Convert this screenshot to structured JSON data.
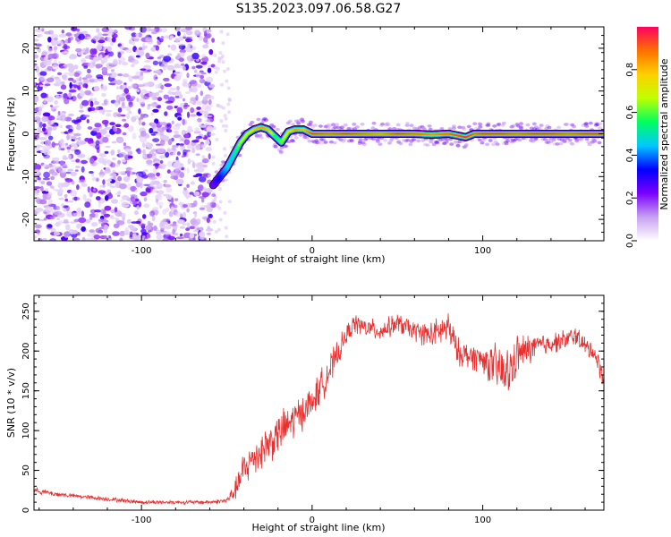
{
  "figure_title": "S135.2023.097.06.58.G27",
  "chart_data": [
    {
      "type": "heatmap",
      "title": "S135.2023.097.06.58.G27",
      "xlabel": "Height of straight line (km)",
      "ylabel": "Frequency (Hz)",
      "xlim": [
        -163,
        171
      ],
      "ylim": [
        -25,
        25
      ],
      "x_ticks": [
        -100,
        0,
        100
      ],
      "y_ticks": [
        -20,
        -10,
        0,
        10,
        20
      ],
      "noise_region": {
        "x": [
          -163,
          -58
        ],
        "y": [
          -25,
          25
        ],
        "amplitude": [
          0.05,
          0.3
        ]
      },
      "ridge": {
        "description": "frequency of spectral maximum vs height",
        "x": [
          -58,
          -54,
          -50,
          -46,
          -42,
          -38,
          -34,
          -30,
          -26,
          -22,
          -18,
          -14,
          -10,
          -5,
          0,
          10,
          20,
          30,
          40,
          50,
          60,
          70,
          80,
          90,
          95,
          100,
          110,
          120,
          130,
          140,
          150,
          160,
          170
        ],
        "frequency": [
          -12,
          -10,
          -8,
          -5,
          -2,
          0,
          1,
          1.5,
          1,
          -0.5,
          -2,
          0.5,
          1,
          1,
          0,
          0,
          0,
          0,
          0,
          0,
          0,
          -0.2,
          0,
          -0.8,
          0,
          0,
          0,
          0,
          0,
          0,
          0,
          0,
          0
        ],
        "amplitude": [
          0.25,
          0.35,
          0.45,
          0.5,
          0.65,
          0.7,
          0.8,
          0.85,
          0.8,
          0.55,
          0.6,
          0.75,
          0.85,
          0.8,
          0.95,
          0.9,
          0.95,
          0.9,
          0.85,
          0.95,
          0.9,
          0.85,
          0.9,
          0.95,
          0.9,
          0.95,
          0.95,
          0.9,
          0.95,
          0.95,
          0.9,
          0.95,
          0.95
        ]
      },
      "colorbar": {
        "label": "Normalized spectral amplitude",
        "range": [
          0,
          1
        ],
        "ticks": [
          "0.0",
          "0.2",
          "0.4",
          "0.6",
          "0.8"
        ],
        "colormap": [
          "#ffffff",
          "#c8a0f0",
          "#7a00ff",
          "#0000ff",
          "#00c8ff",
          "#00ff60",
          "#c0ff00",
          "#ffd000",
          "#ff7000",
          "#ff0060"
        ]
      }
    },
    {
      "type": "line",
      "xlabel": "Height of straight line (km)",
      "ylabel": "SNR (10 * v/v)",
      "xlim": [
        -163,
        171
      ],
      "ylim": [
        0,
        270
      ],
      "x_ticks": [
        -100,
        0,
        100
      ],
      "y_ticks": [
        0,
        50,
        100,
        150,
        200,
        250
      ],
      "color": "#e83030",
      "series": [
        {
          "name": "SNR",
          "x": [
            -163,
            -150,
            -140,
            -130,
            -120,
            -110,
            -100,
            -90,
            -80,
            -70,
            -60,
            -50,
            -45,
            -40,
            -35,
            -30,
            -25,
            -20,
            -15,
            -10,
            -5,
            0,
            5,
            10,
            15,
            20,
            25,
            30,
            40,
            50,
            60,
            70,
            80,
            85,
            90,
            100,
            110,
            115,
            120,
            130,
            140,
            150,
            155,
            160,
            165,
            171
          ],
          "y": [
            25,
            20,
            18,
            16,
            14,
            12,
            10,
            10,
            10,
            10,
            10,
            12,
            25,
            50,
            65,
            75,
            85,
            95,
            105,
            115,
            125,
            135,
            155,
            175,
            195,
            220,
            235,
            230,
            225,
            235,
            225,
            220,
            230,
            200,
            195,
            190,
            175,
            170,
            195,
            205,
            210,
            215,
            220,
            205,
            200,
            165
          ],
          "noise": [
            4,
            4,
            3,
            3,
            3,
            3,
            3,
            3,
            3,
            3,
            3,
            4,
            15,
            30,
            25,
            30,
            30,
            30,
            30,
            30,
            25,
            25,
            25,
            25,
            20,
            15,
            15,
            15,
            15,
            15,
            15,
            20,
            25,
            20,
            20,
            20,
            40,
            40,
            30,
            20,
            15,
            15,
            15,
            15,
            15,
            15
          ]
        }
      ]
    }
  ]
}
